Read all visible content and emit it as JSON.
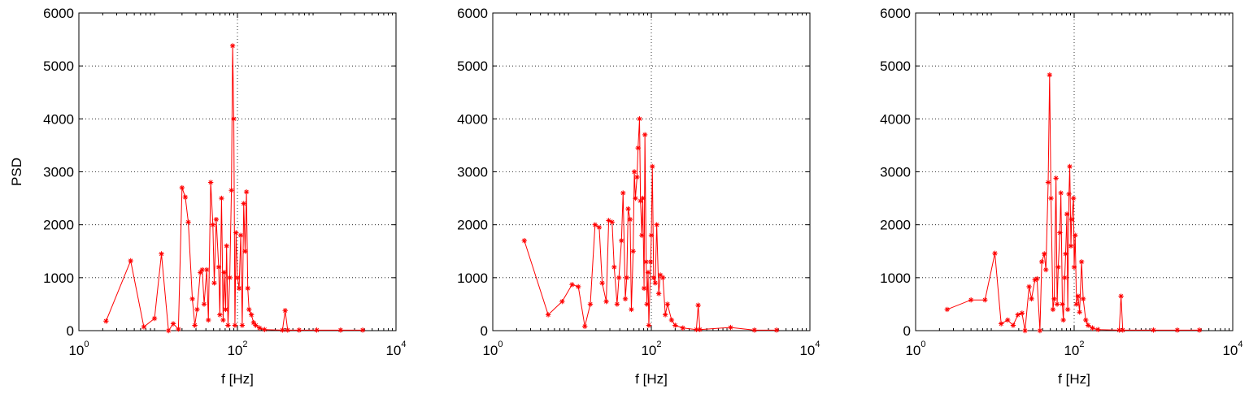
{
  "chart_data": [
    {
      "type": "line",
      "xlabel": "f [Hz]",
      "ylabel": "PSD",
      "log_x": true,
      "grid": true,
      "color": "#ff0000",
      "marker": "*",
      "xlim": [
        1,
        10000
      ],
      "ylim": [
        0,
        6000
      ],
      "xticks": [
        {
          "value": 1,
          "label": "10^0"
        },
        {
          "value": 100,
          "label": "10^2"
        },
        {
          "value": 10000,
          "label": "10^4"
        }
      ],
      "yticks": [
        0,
        1000,
        2000,
        3000,
        4000,
        5000,
        6000
      ],
      "x": [
        2.2,
        4.5,
        6.6,
        9,
        11,
        13.5,
        15.5,
        18,
        20,
        22,
        24,
        27,
        29,
        31,
        34,
        36,
        38,
        41,
        43,
        46,
        49,
        51,
        54,
        58,
        60,
        63,
        66,
        68,
        71,
        73,
        76,
        80,
        84,
        87,
        90,
        93,
        96,
        100,
        105,
        110,
        115,
        120,
        125,
        130,
        135,
        140,
        150,
        160,
        170,
        190,
        220,
        370,
        400,
        430,
        600,
        1000,
        2000,
        3800
      ],
      "values": [
        180,
        1320,
        70,
        230,
        1450,
        0,
        130,
        30,
        2700,
        2520,
        2050,
        600,
        100,
        400,
        1100,
        1150,
        500,
        1150,
        200,
        2800,
        2000,
        900,
        2100,
        1200,
        300,
        2500,
        200,
        1100,
        400,
        1600,
        100,
        1000,
        2650,
        5380,
        4000,
        100,
        1850,
        1000,
        800,
        1800,
        100,
        2400,
        1500,
        2620,
        800,
        400,
        300,
        150,
        100,
        50,
        20,
        10,
        380,
        10,
        10,
        10,
        10,
        10
      ]
    },
    {
      "type": "line",
      "xlabel": "f [Hz]",
      "log_x": true,
      "grid": true,
      "color": "#ff0000",
      "marker": "*",
      "xlim": [
        1,
        10000
      ],
      "ylim": [
        0,
        6000
      ],
      "xticks": [
        {
          "value": 1,
          "label": "10^0"
        },
        {
          "value": 100,
          "label": "10^2"
        },
        {
          "value": 10000,
          "label": "10^4"
        }
      ],
      "yticks": [
        0,
        1000,
        2000,
        3000,
        4000,
        5000,
        6000
      ],
      "x": [
        2.5,
        5,
        7.5,
        10,
        12,
        14.5,
        17,
        19.5,
        22,
        24,
        27,
        29,
        32,
        34,
        37,
        39,
        42,
        44,
        47,
        49,
        51,
        54,
        56,
        59,
        61,
        63,
        66,
        68,
        71,
        73,
        76,
        78,
        81,
        83,
        86,
        88,
        91,
        93,
        98,
        100,
        103,
        107,
        112,
        117,
        124,
        130,
        140,
        150,
        160,
        180,
        200,
        250,
        370,
        390,
        410,
        1000,
        2000,
        3800
      ],
      "values": [
        1700,
        300,
        550,
        870,
        830,
        80,
        500,
        2000,
        1950,
        900,
        550,
        2080,
        2050,
        1200,
        500,
        1000,
        1700,
        2600,
        600,
        1000,
        2300,
        2100,
        400,
        1500,
        3000,
        2500,
        2900,
        3450,
        4000,
        2450,
        1800,
        2500,
        800,
        3700,
        1300,
        500,
        1100,
        100,
        1300,
        1800,
        3100,
        1000,
        900,
        2000,
        700,
        1050,
        1000,
        300,
        500,
        200,
        100,
        50,
        20,
        480,
        20,
        60,
        10,
        10
      ]
    },
    {
      "type": "line",
      "xlabel": "f [Hz]",
      "log_x": true,
      "grid": true,
      "color": "#ff0000",
      "marker": "*",
      "xlim": [
        1,
        10000
      ],
      "ylim": [
        0,
        6000
      ],
      "xticks": [
        {
          "value": 1,
          "label": "10^0"
        },
        {
          "value": 100,
          "label": "10^2"
        },
        {
          "value": 10000,
          "label": "10^4"
        }
      ],
      "yticks": [
        0,
        1000,
        2000,
        3000,
        4000,
        5000,
        6000
      ],
      "x": [
        2.5,
        5,
        7.5,
        10,
        12,
        14.5,
        17,
        19.5,
        22,
        24,
        27,
        29,
        32,
        34,
        37,
        39,
        42,
        44,
        47,
        49,
        51,
        54,
        56,
        59,
        61,
        63,
        66,
        68,
        71,
        73,
        76,
        78,
        81,
        83,
        86,
        88,
        91,
        93,
        98,
        100,
        103,
        107,
        112,
        117,
        124,
        130,
        140,
        150,
        170,
        200,
        370,
        390,
        410,
        1000,
        2000,
        3800
      ],
      "values": [
        400,
        580,
        580,
        1460,
        130,
        200,
        100,
        300,
        330,
        0,
        830,
        600,
        960,
        980,
        0,
        1300,
        1450,
        1150,
        2800,
        4830,
        2500,
        400,
        600,
        2880,
        500,
        1200,
        1850,
        2600,
        500,
        200,
        1000,
        1450,
        2200,
        400,
        2580,
        3100,
        1600,
        2100,
        2500,
        1200,
        1800,
        500,
        650,
        350,
        1300,
        600,
        200,
        100,
        50,
        20,
        10,
        650,
        10,
        10,
        10,
        10
      ]
    }
  ]
}
